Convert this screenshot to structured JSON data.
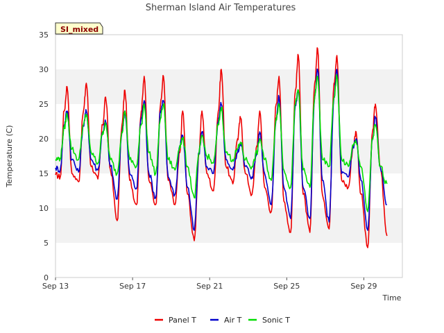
{
  "chart_data": {
    "type": "line",
    "title": "Sherman Island Air Temperatures",
    "badge": "SI_mixed",
    "xlabel": "Time",
    "ylabel": "Temperature (C)",
    "ylim": [
      0,
      35
    ],
    "yticks": [
      0,
      5,
      10,
      15,
      20,
      25,
      30,
      35
    ],
    "xlim": [
      0,
      18
    ],
    "xticks": [
      {
        "day": 0,
        "label": "Sep 13"
      },
      {
        "day": 4,
        "label": "Sep 17"
      },
      {
        "day": 8,
        "label": "Sep 21"
      },
      {
        "day": 12,
        "label": "Sep 25"
      },
      {
        "day": 16,
        "label": "Sep 29"
      }
    ],
    "grid": "alternating horizontal bands",
    "legend_position": "bottom-center",
    "series": [
      {
        "name": "Panel T",
        "color": "#ee0000",
        "x": [
          0.0,
          0.25,
          0.45,
          0.6,
          0.85,
          1.2,
          1.45,
          1.6,
          1.85,
          2.2,
          2.45,
          2.6,
          2.85,
          3.2,
          3.45,
          3.6,
          3.85,
          4.2,
          4.45,
          4.6,
          4.85,
          5.2,
          5.45,
          5.6,
          5.85,
          6.2,
          6.45,
          6.6,
          6.85,
          7.2,
          7.45,
          7.6,
          7.85,
          8.2,
          8.45,
          8.6,
          8.85,
          9.2,
          9.45,
          9.6,
          9.85,
          10.2,
          10.45,
          10.6,
          10.85,
          11.2,
          11.45,
          11.6,
          11.85,
          12.2,
          12.45,
          12.6,
          12.85,
          13.2,
          13.45,
          13.6,
          13.85,
          14.2,
          14.45,
          14.6,
          14.85,
          15.2,
          15.45,
          15.6,
          15.85,
          16.2,
          16.45,
          16.6,
          16.85,
          17.2
        ],
        "y": [
          14.8,
          14.5,
          24,
          27.5,
          15,
          13.8,
          24,
          28,
          16,
          14.2,
          22,
          26,
          15.5,
          8.2,
          22,
          27,
          14,
          10.5,
          24,
          29,
          14,
          10.5,
          25,
          29,
          14,
          10.5,
          18,
          24,
          12,
          5.3,
          18,
          24,
          15,
          12.5,
          24,
          30,
          16,
          13.5,
          20,
          23,
          15,
          12,
          19,
          24,
          13,
          9.5,
          25,
          29,
          11,
          6.5,
          27,
          32,
          12,
          6.5,
          28,
          33,
          12,
          7,
          28,
          32,
          14,
          13,
          19,
          21,
          12,
          4.3,
          21,
          25,
          16,
          6
        ]
      },
      {
        "name": "Air T",
        "color": "#0000cc",
        "x": [
          0.0,
          0.25,
          0.45,
          0.6,
          0.85,
          1.2,
          1.45,
          1.6,
          1.85,
          2.2,
          2.45,
          2.6,
          2.85,
          3.2,
          3.45,
          3.6,
          3.85,
          4.2,
          4.45,
          4.6,
          4.85,
          5.2,
          5.45,
          5.6,
          5.85,
          6.2,
          6.45,
          6.6,
          6.85,
          7.2,
          7.45,
          7.6,
          7.85,
          8.2,
          8.45,
          8.6,
          8.85,
          9.2,
          9.45,
          9.6,
          9.85,
          10.2,
          10.45,
          10.6,
          10.85,
          11.2,
          11.45,
          11.6,
          11.85,
          12.2,
          12.45,
          12.6,
          12.85,
          13.2,
          13.45,
          13.6,
          13.85,
          14.2,
          14.45,
          14.6,
          14.85,
          15.2,
          15.45,
          15.6,
          15.85,
          16.2,
          16.45,
          16.6,
          16.85,
          17.2
        ],
        "y": [
          15.8,
          15.5,
          22,
          24,
          17,
          15.2,
          22,
          24,
          17,
          15.5,
          21,
          22.5,
          16,
          11.3,
          21,
          24,
          15,
          12.8,
          23,
          25.5,
          15,
          11.5,
          24,
          25.5,
          14.5,
          12,
          19,
          20.5,
          13,
          6.8,
          18,
          21,
          16,
          15,
          22.5,
          25,
          17,
          15.5,
          18,
          19.5,
          16,
          14.5,
          18,
          21,
          15,
          10.5,
          23,
          26,
          13,
          8.5,
          25,
          27,
          13,
          8.5,
          26,
          30,
          14,
          8,
          26,
          30,
          15,
          14.5,
          19,
          20,
          14,
          6.8,
          20,
          23,
          16,
          10.5
        ]
      },
      {
        "name": "Sonic T",
        "color": "#00dd00",
        "x": [
          0.0,
          0.25,
          0.45,
          0.6,
          0.85,
          1.2,
          1.45,
          1.6,
          1.85,
          2.2,
          2.45,
          2.6,
          2.85,
          3.2,
          3.45,
          3.6,
          3.85,
          4.2,
          4.45,
          4.6,
          4.85,
          5.2,
          5.45,
          5.6,
          5.85,
          6.2,
          6.45,
          6.6,
          6.85,
          7.2,
          7.45,
          7.6,
          7.85,
          8.2,
          8.45,
          8.6,
          8.85,
          9.2,
          9.45,
          9.6,
          9.85,
          10.2,
          10.45,
          10.6,
          10.85,
          11.2,
          11.45,
          11.6,
          11.85,
          12.2,
          12.45,
          12.6,
          12.85,
          13.2,
          13.45,
          13.6,
          13.85,
          14.2,
          14.45,
          14.6,
          14.85,
          15.2,
          15.45,
          15.6,
          15.85,
          16.2,
          16.45,
          16.6,
          16.85,
          17.2
        ],
        "y": [
          17,
          17.2,
          21.5,
          23.5,
          18.5,
          17,
          22,
          23.5,
          18,
          16.5,
          21,
          22,
          17,
          15,
          21,
          24,
          17,
          16,
          22,
          25,
          18,
          15,
          23,
          25,
          17,
          15.5,
          19,
          20,
          16,
          11.5,
          18,
          20.5,
          17.5,
          16.5,
          22,
          24.5,
          18,
          17,
          18.5,
          19.5,
          17,
          16,
          18,
          20,
          17,
          14,
          23,
          25,
          15.5,
          13,
          25,
          27,
          15.5,
          13,
          26,
          29,
          17,
          16,
          26,
          29,
          17,
          16,
          19,
          19.5,
          16,
          9.5,
          20,
          22,
          16,
          13.5
        ]
      }
    ]
  }
}
